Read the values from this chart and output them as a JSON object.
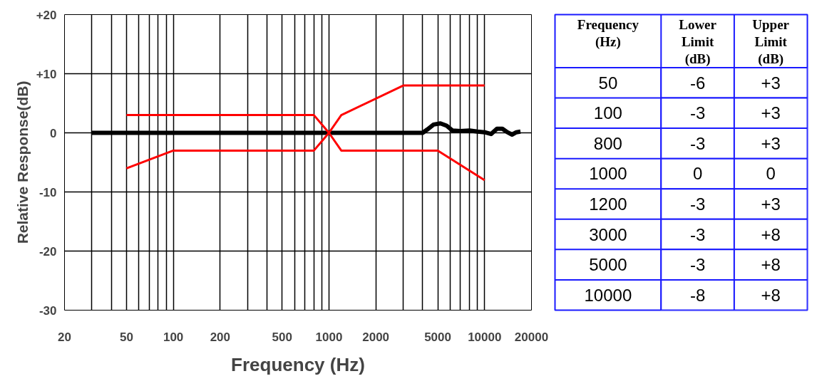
{
  "chart_data": [
    {
      "type": "line",
      "xlabel": "Frequency (Hz)",
      "ylabel": "Relative Response(dB)",
      "log": "x",
      "xlim": [
        20,
        20000
      ],
      "ylim": [
        -30,
        20
      ],
      "xticks": [
        20,
        {
          "value": 30,
          "label": null
        },
        {
          "value": 40,
          "label": null
        },
        50,
        {
          "value": 60,
          "label": null
        },
        {
          "value": 70,
          "label": null
        },
        {
          "value": 80,
          "label": null
        },
        {
          "value": 90,
          "label": null
        },
        100,
        200,
        {
          "value": 300,
          "label": null
        },
        {
          "value": 400,
          "label": null
        },
        500,
        {
          "value": 600,
          "label": null
        },
        {
          "value": 700,
          "label": null
        },
        {
          "value": 800,
          "label": null
        },
        {
          "value": 900,
          "label": null
        },
        1000,
        2000,
        {
          "value": 3000,
          "label": null
        },
        {
          "value": 4000,
          "label": null
        },
        5000,
        {
          "value": 6000,
          "label": null
        },
        {
          "value": 7000,
          "label": null
        },
        {
          "value": 8000,
          "label": null
        },
        {
          "value": 9000,
          "label": null
        },
        10000,
        20000
      ],
      "yticks": [
        {
          "value": 20,
          "label": "+20"
        },
        {
          "value": 10,
          "label": "+10"
        },
        0,
        -10,
        -20,
        -30
      ],
      "grid": true,
      "marker": "none",
      "line_style": "solid",
      "series": [
        {
          "color": "#000000",
          "x": [
            30,
            4000,
            4300,
            4700,
            5200,
            5700,
            6200,
            7000,
            8000,
            9000,
            10000,
            11000,
            12000,
            13000,
            14000,
            15000,
            16000,
            17000
          ],
          "values": [
            0,
            0,
            0.6,
            1.4,
            1.6,
            1.2,
            0.4,
            0.3,
            0.4,
            0.2,
            0.1,
            -0.2,
            0.7,
            0.7,
            0.1,
            -0.3,
            0.1,
            0.2
          ]
        },
        {
          "color": "#ff0000",
          "x": [
            50,
            100,
            800,
            1000,
            1200,
            3000,
            5000,
            10000
          ],
          "values": [
            -6,
            -3,
            -3,
            0,
            -3,
            -3,
            -3,
            -8
          ]
        },
        {
          "color": "#ff0000",
          "x": [
            50,
            100,
            800,
            1000,
            1200,
            3000,
            5000,
            10000
          ],
          "values": [
            3,
            3,
            3,
            0,
            3,
            8,
            8,
            8
          ]
        }
      ]
    },
    {
      "type": "other",
      "ylabel": "Frequency (Hz)",
      "categories": [
        "Lower Limit (dB)",
        "Upper Limit (dB)"
      ],
      "y_categories": [
        "50",
        "100",
        "800",
        "1000",
        "1200",
        "3000",
        "5000",
        "10000"
      ],
      "cell_labels": [
        [
          "-6",
          "+3"
        ],
        [
          "-3",
          "+3"
        ],
        [
          "-3",
          "+3"
        ],
        [
          "0",
          "0"
        ],
        [
          "-3",
          "+3"
        ],
        [
          "-3",
          "+8"
        ],
        [
          "-3",
          "+8"
        ],
        [
          "-8",
          "+8"
        ]
      ]
    }
  ]
}
